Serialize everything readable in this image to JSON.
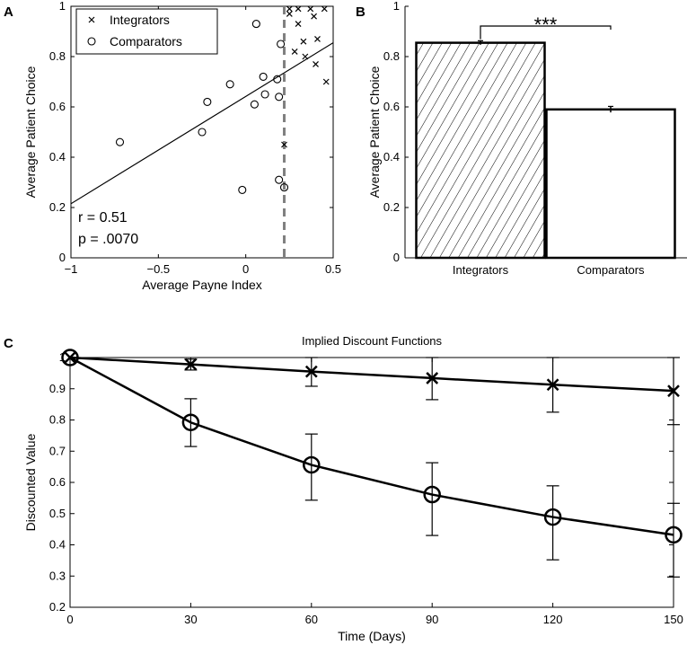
{
  "chart_data": [
    {
      "panel": "A",
      "type": "scatter",
      "xlabel": "Average Payne Index",
      "ylabel": "Average Patient Choice",
      "xlim": [
        -1,
        0.5
      ],
      "ylim": [
        0,
        1
      ],
      "xticks": [
        "−1",
        "−0.5",
        "0",
        "0.5"
      ],
      "xtick_values": [
        -1,
        -0.5,
        0,
        0.5
      ],
      "yticks": [
        "0",
        "0.2",
        "0.4",
        "0.6",
        "0.8",
        "1"
      ],
      "ytick_values": [
        0,
        0.2,
        0.4,
        0.6,
        0.8,
        1
      ],
      "legend": [
        "Integrators",
        "Comparators"
      ],
      "annotations": [
        "r = 0.51",
        "p = .0070"
      ],
      "threshold_x": 0.22,
      "fit_line": {
        "x": [
          -1,
          0.5
        ],
        "y": [
          0.215,
          0.855
        ]
      },
      "series": [
        {
          "name": "Integrators",
          "marker": "x",
          "points": [
            [
              0.25,
              0.99
            ],
            [
              0.25,
              0.97
            ],
            [
              0.3,
              0.99
            ],
            [
              0.37,
              0.99
            ],
            [
              0.45,
              0.99
            ],
            [
              0.39,
              0.96
            ],
            [
              0.3,
              0.93
            ],
            [
              0.33,
              0.86
            ],
            [
              0.41,
              0.87
            ],
            [
              0.28,
              0.82
            ],
            [
              0.34,
              0.8
            ],
            [
              0.4,
              0.77
            ],
            [
              0.46,
              0.7
            ],
            [
              0.22,
              0.45
            ]
          ]
        },
        {
          "name": "Comparators",
          "marker": "o",
          "points": [
            [
              -0.72,
              0.46
            ],
            [
              -0.25,
              0.5
            ],
            [
              -0.22,
              0.62
            ],
            [
              -0.09,
              0.69
            ],
            [
              -0.02,
              0.27
            ],
            [
              0.06,
              0.93
            ],
            [
              0.05,
              0.61
            ],
            [
              0.1,
              0.72
            ],
            [
              0.11,
              0.65
            ],
            [
              0.18,
              0.71
            ],
            [
              0.19,
              0.64
            ],
            [
              0.2,
              0.85
            ],
            [
              0.19,
              0.31
            ],
            [
              0.22,
              0.28
            ]
          ]
        }
      ]
    },
    {
      "panel": "B",
      "type": "bar",
      "categories": [
        "Integrators",
        "Comparators"
      ],
      "values": [
        0.855,
        0.59
      ],
      "errors": [
        0.008,
        0.012
      ],
      "ylabel": "Average Patient Choice",
      "ylim": [
        0,
        1
      ],
      "yticks": [
        "0",
        "0.2",
        "0.4",
        "0.6",
        "0.8",
        "1"
      ],
      "ytick_values": [
        0,
        0.2,
        0.4,
        0.6,
        0.8,
        1
      ],
      "significance": "***"
    },
    {
      "panel": "C",
      "type": "line",
      "title": "Implied Discount Functions",
      "xlabel": "Time (Days)",
      "ylabel": "Discounted Value",
      "xlim": [
        0,
        150
      ],
      "ylim": [
        0.2,
        1.0
      ],
      "x": [
        0,
        30,
        60,
        90,
        120,
        150
      ],
      "xticks": [
        "0",
        "30",
        "60",
        "90",
        "120",
        "150"
      ],
      "yticks": [
        "0.2",
        "0.3",
        "0.4",
        "0.5",
        "0.6",
        "0.7",
        "0.8",
        "0.9",
        "1"
      ],
      "ytick_values": [
        0.2,
        0.3,
        0.4,
        0.5,
        0.6,
        0.7,
        0.8,
        0.9,
        1.0
      ],
      "series": [
        {
          "name": "Integrators",
          "marker": "x",
          "values": [
            1.0,
            0.978,
            0.955,
            0.934,
            0.913,
            0.893
          ],
          "err_low": [
            1.0,
            0.96,
            0.908,
            0.865,
            0.825,
            0.785
          ],
          "err_high": [
            1.0,
            0.995,
            1.0,
            1.0,
            1.0,
            1.0
          ]
        },
        {
          "name": "Comparators",
          "marker": "o",
          "values": [
            1.0,
            0.792,
            0.656,
            0.561,
            0.489,
            0.432
          ],
          "err_low": [
            1.0,
            0.715,
            0.543,
            0.43,
            0.352,
            0.297
          ],
          "err_high": [
            1.0,
            0.868,
            0.755,
            0.663,
            0.589,
            0.533
          ]
        }
      ]
    }
  ]
}
